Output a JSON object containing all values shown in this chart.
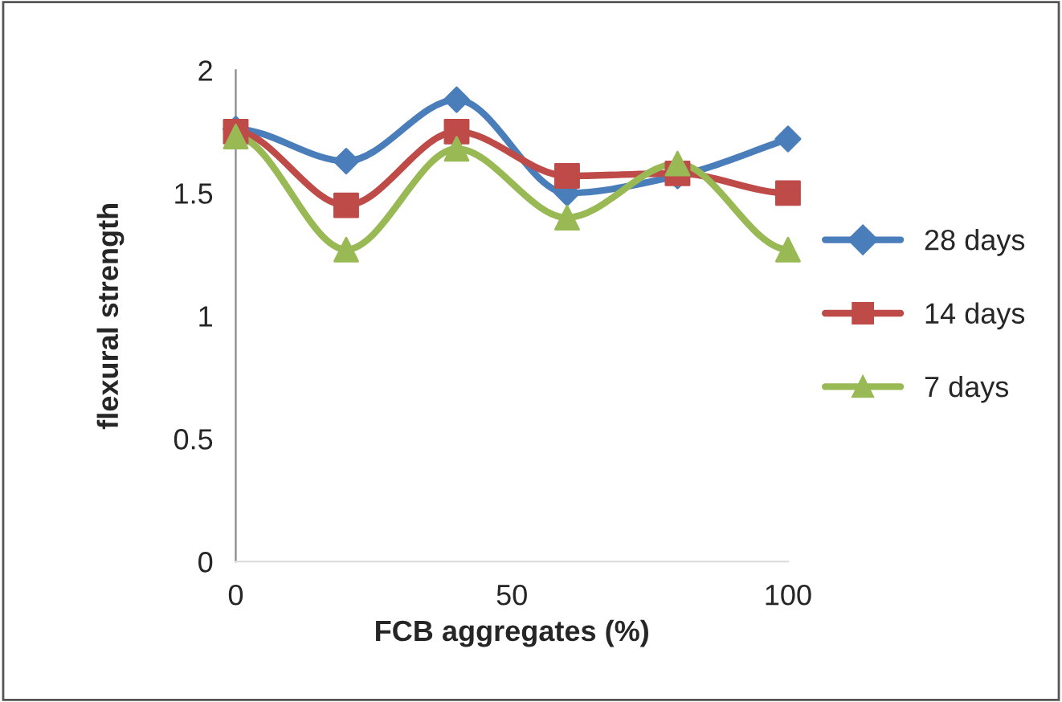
{
  "chart_data": {
    "type": "line",
    "xlabel": "FCB aggregates (%)",
    "ylabel": "flexural strength",
    "x": [
      0,
      20,
      40,
      60,
      80,
      100
    ],
    "xlim": [
      0,
      100
    ],
    "xticks": [
      0,
      50,
      100
    ],
    "ylim": [
      0,
      2
    ],
    "yticks": [
      0,
      0.5,
      1,
      1.5,
      2
    ],
    "grid": false,
    "legend": "right",
    "line_style": "solid",
    "series": [
      {
        "name": "28 days",
        "color": "#4a7ebb",
        "marker": "diamond",
        "values": [
          1.76,
          1.63,
          1.88,
          1.5,
          1.57,
          1.72
        ]
      },
      {
        "name": "14 days",
        "color": "#be4b48",
        "marker": "square",
        "values": [
          1.75,
          1.45,
          1.75,
          1.57,
          1.58,
          1.5
        ]
      },
      {
        "name": "7 days",
        "color": "#98b954",
        "marker": "triangle",
        "values": [
          1.73,
          1.27,
          1.68,
          1.4,
          1.62,
          1.27
        ]
      }
    ]
  }
}
